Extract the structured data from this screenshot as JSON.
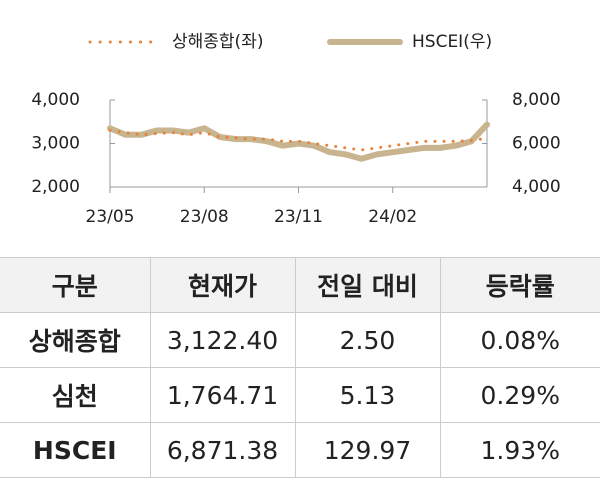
{
  "chart_data": {
    "type": "line",
    "categories": [
      "23/05",
      null,
      null,
      null,
      null,
      null,
      "23/08",
      null,
      null,
      null,
      null,
      null,
      "23/11",
      null,
      null,
      null,
      null,
      null,
      "24/02",
      null,
      null,
      null,
      null,
      null,
      null
    ],
    "series": [
      {
        "name": "상해종합(좌)",
        "color": "#e8843a",
        "style": "dotted",
        "axis": "y",
        "values": [
          3300,
          3250,
          3200,
          3230,
          3250,
          3200,
          3250,
          3150,
          3130,
          3100,
          3100,
          3050,
          3050,
          3000,
          2950,
          2900,
          2850,
          2900,
          2950,
          3000,
          3050,
          3050,
          3050,
          3070,
          3120
        ]
      },
      {
        "name": "HSCEI(우)",
        "color": "#c8b48f",
        "style": "solid",
        "axis": "y2",
        "values": [
          6700,
          6400,
          6400,
          6600,
          6600,
          6500,
          6700,
          6300,
          6200,
          6200,
          6100,
          5900,
          6000,
          5900,
          5600,
          5500,
          5300,
          5500,
          5600,
          5700,
          5800,
          5800,
          5900,
          6100,
          6870
        ]
      }
    ],
    "ylim": [
      2000,
      4000
    ],
    "yticks": [
      {
        "value": 2000,
        "label": "2,000"
      },
      {
        "value": 3000,
        "label": "3,000"
      },
      {
        "value": 4000,
        "label": "4,000"
      }
    ],
    "y2lim": [
      4000,
      8000
    ],
    "y2ticks": [
      {
        "value": 4000,
        "label": "4,000"
      },
      {
        "value": 6000,
        "label": "6,000"
      },
      {
        "value": 8000,
        "label": "8,000"
      }
    ],
    "grid": false,
    "legend": "top"
  },
  "table": {
    "header": [
      "구분",
      "현재가",
      "전일 대비",
      "등락률"
    ],
    "rows": [
      [
        "상해종합",
        "3,122.40",
        "2.50",
        "0.08%"
      ],
      [
        "심천",
        "1,764.71",
        "5.13",
        "0.29%"
      ],
      [
        "HSCEI",
        "6,871.38",
        "129.97",
        "1.93%"
      ]
    ]
  }
}
